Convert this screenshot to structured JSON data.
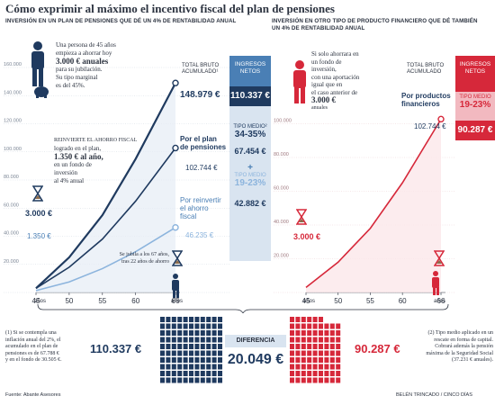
{
  "title": "Cómo exprimir al máximo el incentivo fiscal del plan de pensiones",
  "left": {
    "subtitle": "INVERSIÓN EN UN PLAN DE PENSIONES QUE DÉ UN 4% DE RENTABILIDAD ANUAL",
    "intro_line1": "Una persona de 45 años",
    "intro_line2": "empieza a ahorrar hoy",
    "intro_amount": "3.000 € anuales",
    "intro_line3": "para su jubilación.",
    "intro_line4": "Su tipo marginal",
    "intro_line5": "es del 45%.",
    "reinvest_line1": "REINVIERTE EL AHORRO FISCAL",
    "reinvest_line2": "logrado en el plan,",
    "reinvest_amount": "1.350 € al año,",
    "reinvest_line3": "en un fondo de",
    "reinvest_line4": "inversión",
    "reinvest_line5": "al 4% anual",
    "label_3000": "3.000 €",
    "label_1350": "1.350 €",
    "total_label1": "TOTAL BRUTO",
    "total_label2": "ACUMULADO¹",
    "total_value": "148.979 €",
    "plan_label1": "Por el plan",
    "plan_label2": "de pensiones",
    "plan_value": "102.744 €",
    "reinv_label1": "Por reinvertir",
    "reinv_label2": "el ahorro",
    "reinv_label3": "fiscal",
    "reinv_value": "46.235 €",
    "jubila_line1": "Se jubila a los 67 años,",
    "jubila_line2": "tras 22 años de ahorro",
    "x_unit": "años",
    "side_head1": "INGRESOS",
    "side_head2": "NETOS",
    "side_net": "110.337 €",
    "side_tipo_label": "TIPO MEDIO²",
    "side_tipo_value": "34-35%",
    "side_plan_net": "67.454 €",
    "side_plus": "+",
    "side_tipo2_label": "TIPO MEDIO",
    "side_tipo2_value": "19-23%",
    "side_reinv_net": "42.882 €"
  },
  "right": {
    "subtitle_line1": "INVERSIÓN EN OTRO TIPO DE PRODUCTO FINANCIERO QUE DÉ TAMBIÉN",
    "subtitle_line2": "UN 4% DE RENTABILIDAD ANUAL",
    "intro_line1": "Si solo ahorrara en",
    "intro_line2": "un fondo de",
    "intro_line3": "inversión,",
    "intro_line4": "con una aportación",
    "intro_line5": "igual que en",
    "intro_line6": "el caso anterior de",
    "intro_amount": "3.000 €",
    "intro_line7": "anuales",
    "label_3000": "3.000 €",
    "total_label1": "TOTAL BRUTO",
    "total_label2": "ACUMULADO",
    "products_label1": "Por productos",
    "products_label2": "financieros",
    "products_value": "102.744 €",
    "x_unit": "años",
    "side_head1": "INGRESOS",
    "side_head2": "NETOS",
    "side_tipo_label": "TIPO MEDIO",
    "side_tipo_value": "19-23%",
    "side_net": "90.287 €"
  },
  "bottom": {
    "note1": [
      "(1) Si se contempla una",
      "inflación anual del 2%, el",
      "acumulado en el plan de",
      "pensiones es de 67.788 €",
      "y en el fondo de 30.505 €."
    ],
    "note2": [
      "(2) Tipo medio aplicado en un",
      "rescate en forma de capital.",
      "Cobrará además la pensión",
      "máxima de la Seguridad Social",
      "(37.231 € anuales)."
    ],
    "left_total": "110.337 €",
    "right_total": "90.287 €",
    "diff_label": "DIFERENCIA",
    "diff_value": "20.049 €",
    "source": "Fuente: Abante Asesores",
    "credit": "BELÉN TRINCADO / CINCO DÍAS"
  },
  "colors": {
    "navy": "#1f3a5f",
    "blue": "#4a7fb5",
    "lightblue": "#8cb4dd",
    "red": "#d6283a",
    "pink": "#f2b9c0",
    "panelblue": "#d9e4f0",
    "text": "#2c3340"
  },
  "chart_data": [
    {
      "type": "line",
      "x": [
        45,
        50,
        55,
        60,
        66
      ],
      "xlabel": "años",
      "ylim": [
        0,
        160000
      ],
      "yticks": [
        0,
        20000,
        40000,
        60000,
        80000,
        100000,
        120000,
        140000,
        160000
      ],
      "ytick_labels": [
        "",
        "20.000",
        "40.000",
        "60.000",
        "80.000",
        "100.000",
        "120.000",
        "140.000",
        "160.000"
      ],
      "series": [
        {
          "name": "TOTAL BRUTO ACUMULADO",
          "values": [
            3000,
            25000,
            55000,
            95000,
            148979
          ]
        },
        {
          "name": "Por el plan de pensiones",
          "values": [
            3000,
            18000,
            38000,
            65000,
            102744
          ]
        },
        {
          "name": "Por reinvertir el ahorro fiscal",
          "values": [
            1350,
            7500,
            17000,
            29000,
            46235
          ]
        }
      ]
    },
    {
      "type": "line",
      "x": [
        45,
        50,
        55,
        60,
        66
      ],
      "xlabel": "años",
      "ylim": [
        0,
        120000
      ],
      "yticks": [
        0,
        20000,
        40000,
        60000,
        80000,
        100000
      ],
      "ytick_labels": [
        "",
        "20.000",
        "40.000",
        "60.000",
        "80.000",
        "100.000"
      ],
      "series": [
        {
          "name": "Por productos financieros",
          "values": [
            3000,
            18000,
            38000,
            65000,
            102744
          ]
        }
      ]
    }
  ]
}
